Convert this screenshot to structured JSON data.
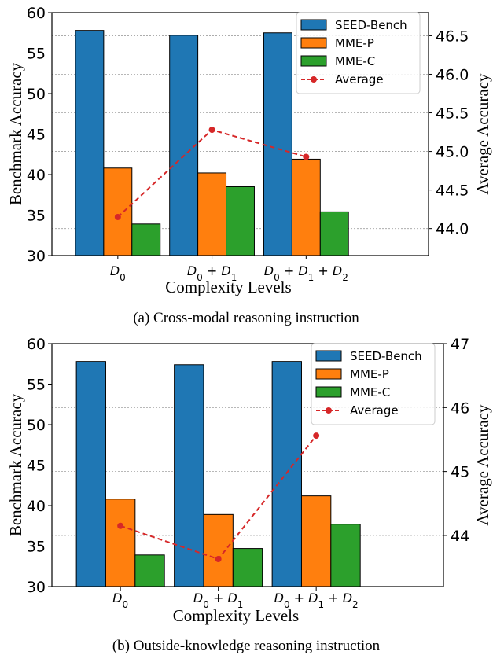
{
  "chart_data": [
    {
      "type": "bar",
      "caption": "(a) Cross-modal reasoning instruction",
      "xlabel": "Complexity Levels",
      "ylabel": "Benchmark Accuracy",
      "y2label": "Average Accuracy",
      "categories": [
        "D0",
        "D0 + D1",
        "D0 + D1 + D2"
      ],
      "ylim": [
        30,
        60
      ],
      "yticks": [
        30,
        35,
        40,
        45,
        50,
        55,
        60
      ],
      "y2lim": [
        43.65,
        46.8
      ],
      "y2ticks": [
        44.0,
        44.5,
        45.0,
        45.5,
        46.0,
        46.5
      ],
      "series": [
        {
          "name": "SEED-Bench",
          "color": "#1f77b4",
          "values": [
            57.8,
            57.2,
            57.5
          ]
        },
        {
          "name": "MME-P",
          "color": "#ff7f0e",
          "values": [
            40.8,
            40.2,
            41.9
          ]
        },
        {
          "name": "MME-C",
          "color": "#2ca02c",
          "values": [
            33.9,
            38.5,
            35.4
          ]
        }
      ],
      "line": {
        "name": "Average",
        "color": "#d62728",
        "values": [
          44.15,
          45.28,
          44.93
        ]
      },
      "legend": "top-right",
      "grid": "right-axis dotted"
    },
    {
      "type": "bar",
      "caption": "(b) Outside-knowledge reasoning instruction",
      "xlabel": "Complexity Levels",
      "ylabel": "Benchmark Accuracy",
      "y2label": "Average Accuracy",
      "categories": [
        "D0",
        "D0 + D1",
        "D0 + D1 + D2"
      ],
      "ylim": [
        30,
        60
      ],
      "yticks": [
        30,
        35,
        40,
        45,
        50,
        55,
        60
      ],
      "y2lim": [
        43.2,
        47.0
      ],
      "y2ticks": [
        44,
        45,
        46,
        47
      ],
      "series": [
        {
          "name": "SEED-Bench",
          "color": "#1f77b4",
          "values": [
            57.8,
            57.4,
            57.8
          ]
        },
        {
          "name": "MME-P",
          "color": "#ff7f0e",
          "values": [
            40.8,
            38.9,
            41.2
          ]
        },
        {
          "name": "MME-C",
          "color": "#2ca02c",
          "values": [
            33.9,
            34.7,
            37.7
          ]
        }
      ],
      "line": {
        "name": "Average",
        "color": "#d62728",
        "values": [
          44.15,
          43.63,
          45.56
        ]
      },
      "legend": "top-right",
      "grid": "right-axis dotted"
    }
  ]
}
